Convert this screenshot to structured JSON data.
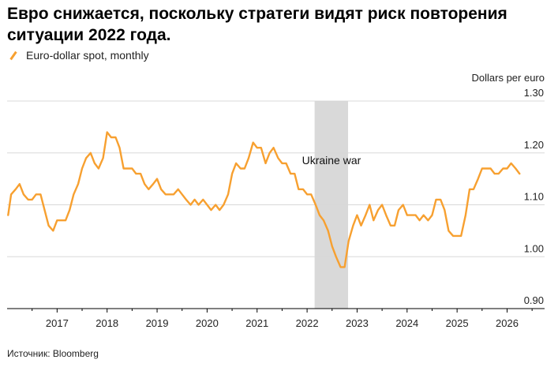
{
  "title": "Евро снижается, поскольку стратеги видят риск повторения ситуации 2022 года.",
  "legend": {
    "label": "Euro-dollar spot, monthly",
    "color": "#F7A030"
  },
  "unit_label": "Dollars per euro",
  "source": "Источник: Bloomberg",
  "colors": {
    "line": "#F7A030",
    "shade": "#D9D9D9",
    "grid": "#D8D8D8"
  },
  "chart_data": {
    "type": "line",
    "title": "Евро снижается, поскольку стратеги видят риск повторения ситуации 2022 года.",
    "ylabel": "Dollars per euro",
    "xlabel": "",
    "ylim": [
      0.9,
      1.3
    ],
    "xlim": [
      2016.0,
      2026.75
    ],
    "yticks": [
      "1.30",
      "1.20",
      "1.10",
      "1.00",
      "0.90"
    ],
    "ytick_values": [
      1.3,
      1.2,
      1.1,
      1.0,
      0.9
    ],
    "xticks": [
      "2017",
      "2018",
      "2019",
      "2020",
      "2021",
      "2022",
      "2023",
      "2024",
      "2025",
      "2026"
    ],
    "xtick_values": [
      2017,
      2018,
      2019,
      2020,
      2021,
      2022,
      2023,
      2024,
      2025,
      2026
    ],
    "grid": "horizontal",
    "shaded_region": {
      "label": "Ukraine war",
      "start": 2022.15,
      "end": 2022.82
    },
    "series": [
      {
        "name": "Euro-dollar spot, monthly",
        "x": [
          2016.02,
          2016.08,
          2016.17,
          2016.25,
          2016.33,
          2016.42,
          2016.5,
          2016.58,
          2016.67,
          2016.75,
          2016.83,
          2016.92,
          2017.0,
          2017.08,
          2017.17,
          2017.25,
          2017.33,
          2017.42,
          2017.5,
          2017.58,
          2017.67,
          2017.75,
          2017.83,
          2017.92,
          2018.0,
          2018.08,
          2018.17,
          2018.25,
          2018.33,
          2018.42,
          2018.5,
          2018.58,
          2018.67,
          2018.75,
          2018.83,
          2018.92,
          2019.0,
          2019.08,
          2019.17,
          2019.25,
          2019.33,
          2019.42,
          2019.5,
          2019.58,
          2019.67,
          2019.75,
          2019.83,
          2019.92,
          2020.0,
          2020.08,
          2020.17,
          2020.25,
          2020.33,
          2020.42,
          2020.5,
          2020.58,
          2020.67,
          2020.75,
          2020.83,
          2020.92,
          2021.0,
          2021.08,
          2021.17,
          2021.25,
          2021.33,
          2021.42,
          2021.5,
          2021.58,
          2021.67,
          2021.75,
          2021.83,
          2021.92,
          2022.0,
          2022.08,
          2022.17,
          2022.25,
          2022.33,
          2022.42,
          2022.5,
          2022.58,
          2022.67,
          2022.75,
          2022.83,
          2022.92,
          2023.0,
          2023.08,
          2023.17,
          2023.25,
          2023.33,
          2023.42,
          2023.5,
          2023.58,
          2023.67,
          2023.75,
          2023.83,
          2023.92,
          2024.0,
          2024.08,
          2024.17,
          2024.25,
          2024.33,
          2024.42,
          2024.5,
          2024.58,
          2024.67,
          2024.75,
          2024.83,
          2024.92,
          2025.0,
          2025.08,
          2025.17,
          2025.25,
          2025.33,
          2025.42,
          2025.5,
          2025.58,
          2025.67,
          2025.75,
          2025.83,
          2025.92,
          2026.0,
          2026.08,
          2026.17,
          2026.25
        ],
        "values": [
          1.08,
          1.12,
          1.13,
          1.14,
          1.12,
          1.11,
          1.11,
          1.12,
          1.12,
          1.09,
          1.06,
          1.05,
          1.07,
          1.07,
          1.07,
          1.09,
          1.12,
          1.14,
          1.17,
          1.19,
          1.2,
          1.18,
          1.17,
          1.19,
          1.24,
          1.23,
          1.23,
          1.21,
          1.17,
          1.17,
          1.17,
          1.16,
          1.16,
          1.14,
          1.13,
          1.14,
          1.15,
          1.13,
          1.12,
          1.12,
          1.12,
          1.13,
          1.12,
          1.11,
          1.1,
          1.11,
          1.1,
          1.11,
          1.1,
          1.09,
          1.1,
          1.09,
          1.1,
          1.12,
          1.16,
          1.18,
          1.17,
          1.17,
          1.19,
          1.22,
          1.21,
          1.21,
          1.18,
          1.2,
          1.21,
          1.19,
          1.18,
          1.18,
          1.16,
          1.16,
          1.13,
          1.13,
          1.12,
          1.12,
          1.1,
          1.08,
          1.07,
          1.05,
          1.02,
          1.0,
          0.98,
          0.98,
          1.03,
          1.06,
          1.08,
          1.06,
          1.08,
          1.1,
          1.07,
          1.09,
          1.1,
          1.08,
          1.06,
          1.06,
          1.09,
          1.1,
          1.08,
          1.08,
          1.08,
          1.07,
          1.08,
          1.07,
          1.08,
          1.11,
          1.11,
          1.09,
          1.05,
          1.04,
          1.04,
          1.04,
          1.08,
          1.13,
          1.13,
          1.15,
          1.17,
          1.17,
          1.17,
          1.16,
          1.16,
          1.17,
          1.17,
          1.18,
          1.17,
          1.16
        ]
      }
    ]
  }
}
